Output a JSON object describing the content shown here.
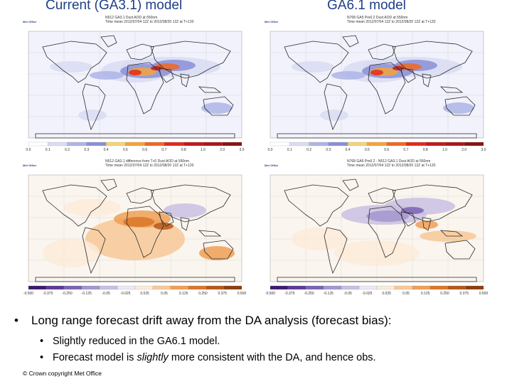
{
  "slide": {
    "heading_left": "Current (GA3.1) model",
    "heading_right": "GA6.1 model",
    "bullet_main": "Long range forecast drift away from the DA analysis (forecast bias):",
    "sub_bullet_1": "Slightly reduced in the GA6.1 model.",
    "sub_bullet_2_before": "Forecast model is ",
    "sub_bullet_2_emph": "slightly",
    "sub_bullet_2_after": " more consistent with the DA, and hence obs.",
    "copyright": "© Crown copyright   Met Office",
    "bullet_glyph": "•"
  },
  "maps": [
    {
      "logo": "Met Office",
      "title_line1": "N512 GA3.1 Dust AOD at 550nm",
      "title_line2": "Time mean 2012/07/04 12Z to 2012/08/20 12Z at T+120",
      "scale_labels": [
        "0.0",
        "0.1",
        "0.2",
        "0.3",
        "0.4",
        "0.5",
        "0.6",
        "0.7",
        "0.8",
        "1.0",
        "2.0",
        "3.0"
      ],
      "palette": "sequential"
    },
    {
      "logo": "Met Office",
      "title_line1": "N768 GA5 Pre0.2 Dust AOD at 550nm",
      "title_line2": "Time mean 2012/07/04 12Z to 2012/08/20 12Z at T+120",
      "scale_labels": [
        "0.0",
        "0.1",
        "0.2",
        "0.3",
        "0.4",
        "0.5",
        "0.6",
        "0.7",
        "0.8",
        "1.0",
        "2.0",
        "3.0"
      ],
      "palette": "sequential"
    },
    {
      "logo": "Met Office",
      "title_line1": "N512 GA3.1 difference from T+0 Dust AOD at 550nm",
      "title_line2": "Time mean 2012/07/04 12Z to 2012/08/20 12Z at T+120",
      "scale_labels": [
        "-0.500",
        "-0.375",
        "-0.250",
        "-0.125",
        "-0.05",
        "-0.025",
        "0.025",
        "0.05",
        "0.125",
        "0.250",
        "0.375",
        "0.500"
      ],
      "palette": "diverging_orange"
    },
    {
      "logo": "Met Office",
      "title_line1": "N768 GA5 Pre0.2 - N512 GA3.1 Dust AOD at 550nm",
      "title_line2": "Time mean 2012/07/04 12Z to 2012/08/20 12Z at T+120",
      "scale_labels": [
        "-0.500",
        "-0.375",
        "-0.250",
        "-0.125",
        "-0.05",
        "-0.025",
        "0.025",
        "0.05",
        "0.125",
        "0.250",
        "0.375",
        "0.500"
      ],
      "palette": "diverging_purple"
    }
  ],
  "colors": {
    "heading": "#1f3f86",
    "coast": "#2b2b2b",
    "sequential": [
      "#ffffff",
      "#d9dcf2",
      "#aeb5e6",
      "#8a90d6",
      "#f6d27a",
      "#f3a33c",
      "#ee6a24",
      "#e12b1b",
      "#c21a1a",
      "#a91717",
      "#8a1212"
    ],
    "diverging": [
      "#3b1c6e",
      "#5c3a94",
      "#7d63b3",
      "#a595cf",
      "#c8bfe2",
      "#ebe7f4",
      "#fbebd9",
      "#f7c897",
      "#ef9f55",
      "#d9772a",
      "#b5591a",
      "#8d3f10"
    ]
  }
}
